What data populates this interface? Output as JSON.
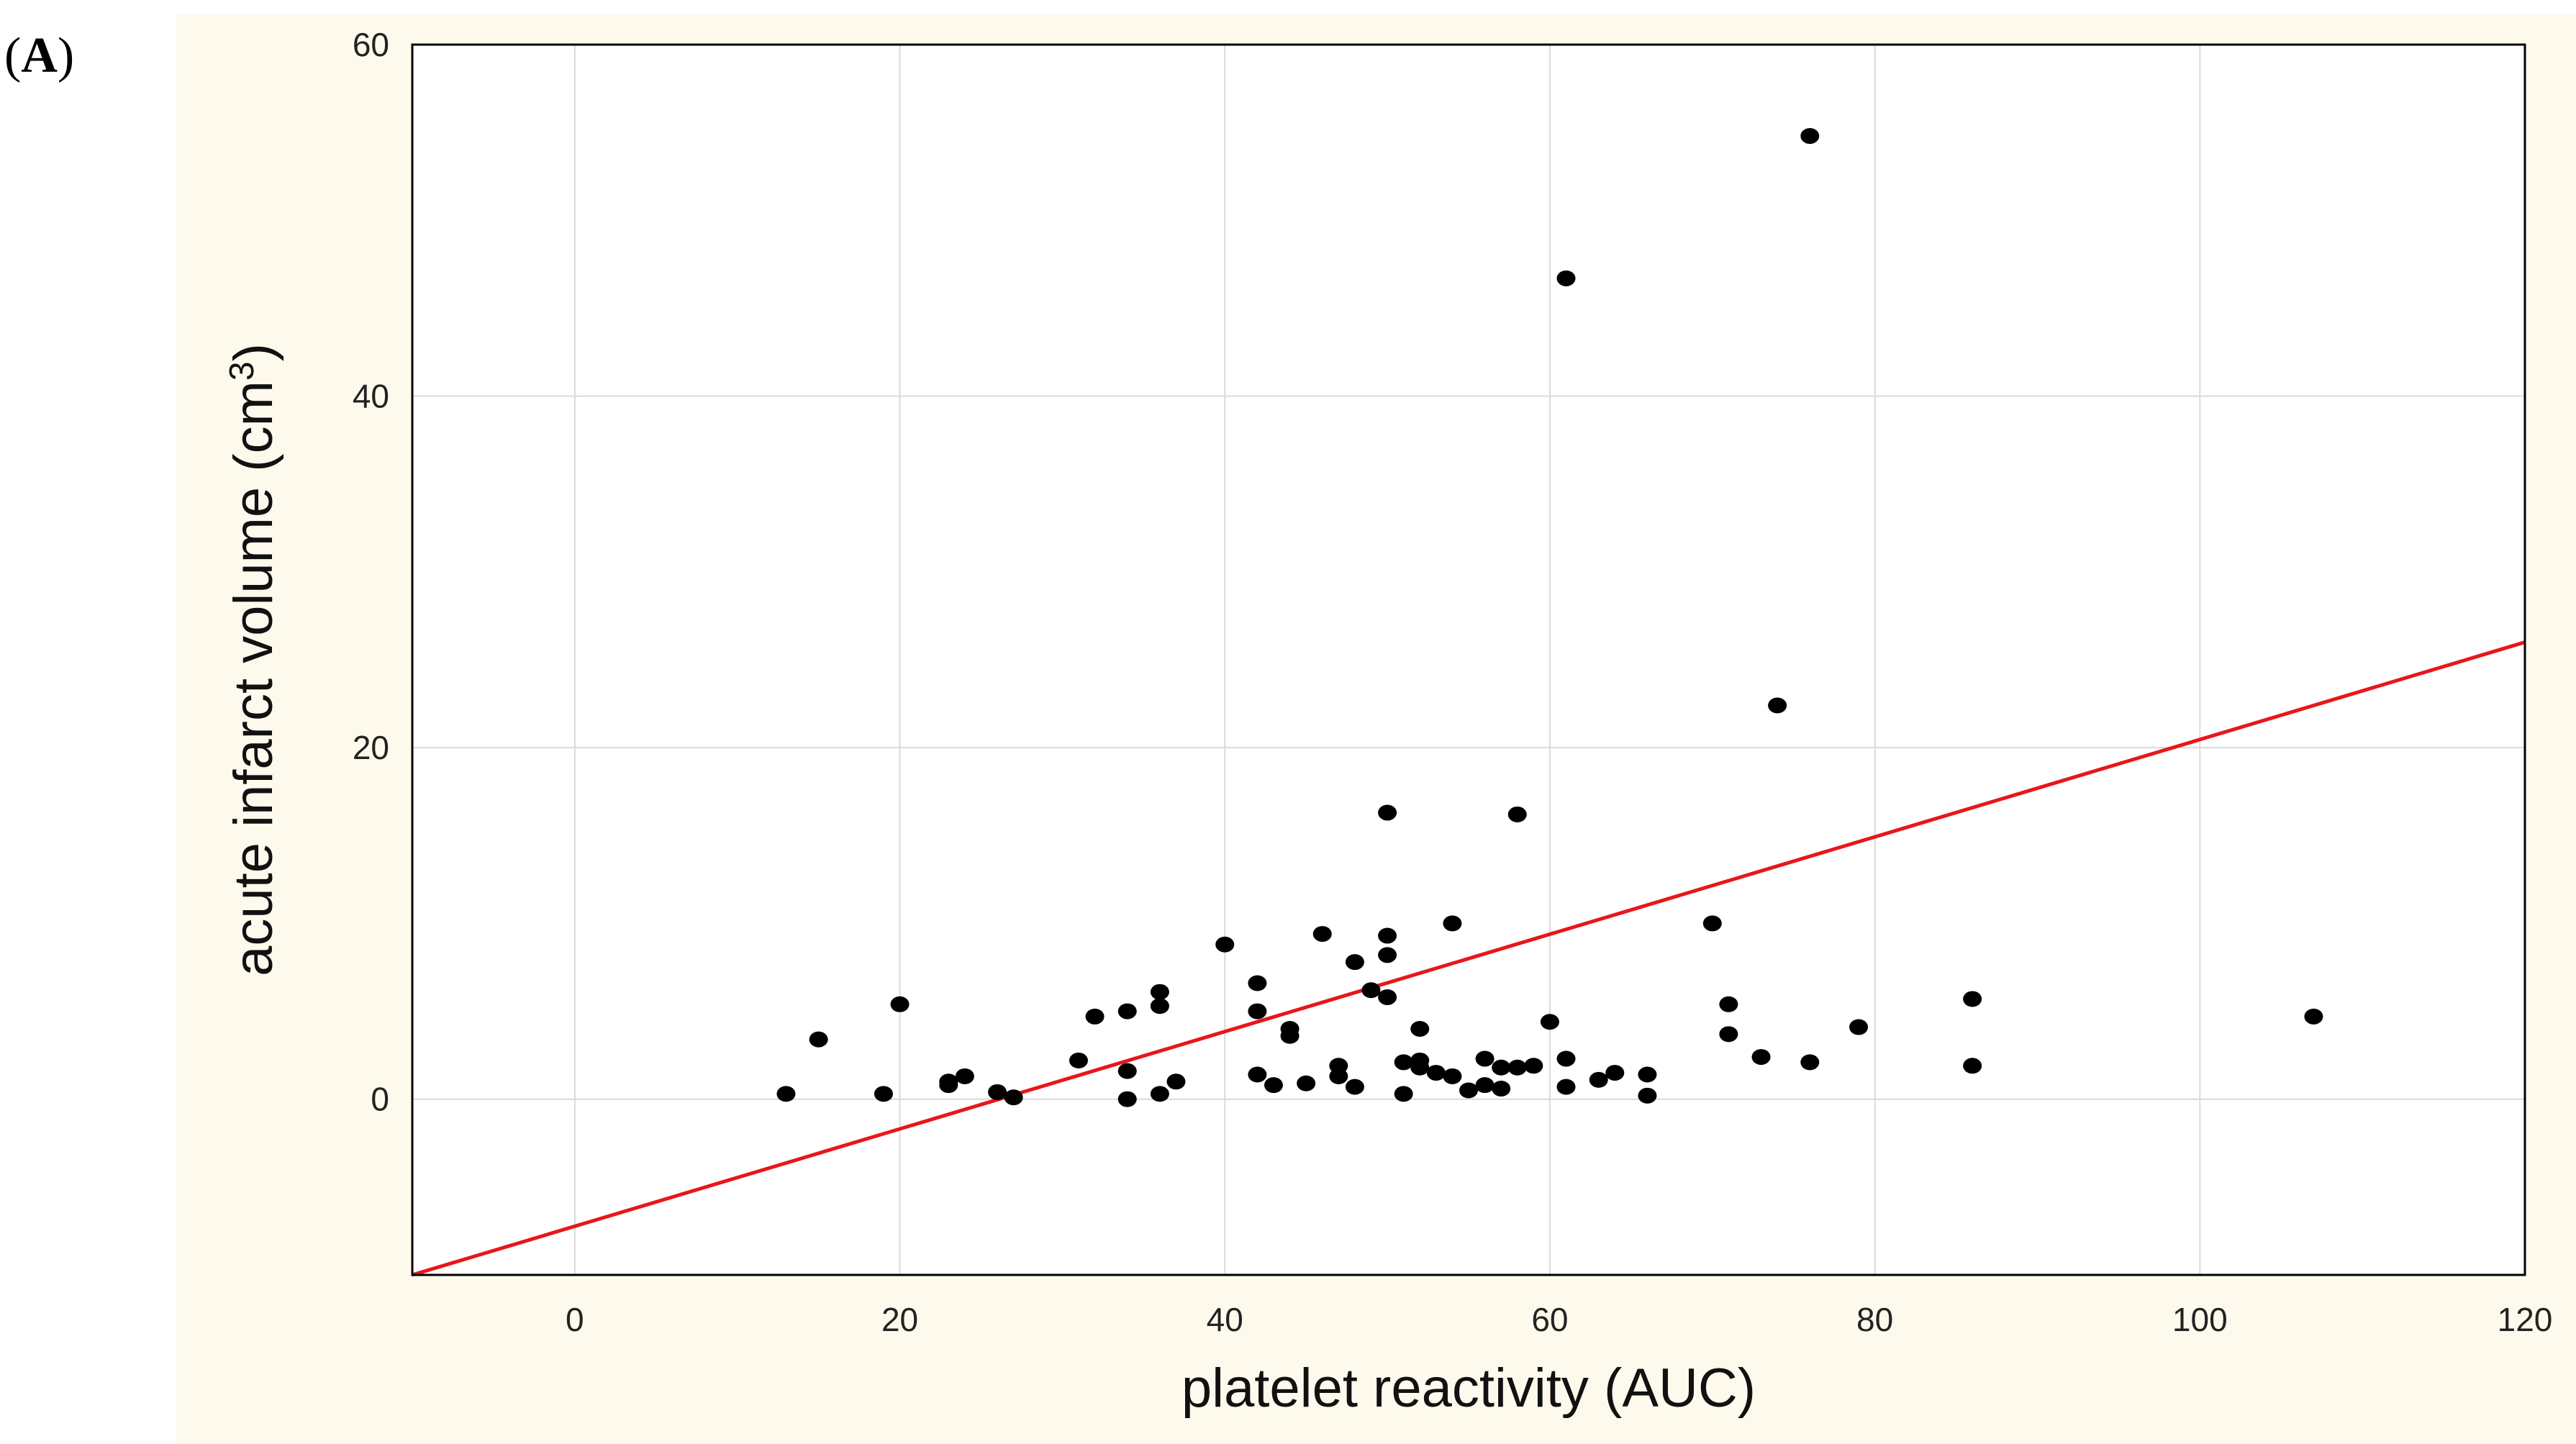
{
  "panel_label": {
    "open": "(",
    "letter": "A",
    "close": ")"
  },
  "colors": {
    "panel_background": "#fdf9ec",
    "plot_background": "#ffffff",
    "grid": "#d9d9d9",
    "points": "#000000",
    "fit_line": "#e8161b"
  },
  "chart_data": {
    "type": "scatter",
    "title": "",
    "xlabel": "platelet reactivity (AUC)",
    "ylabel_main": "acute infarct volume (cm",
    "ylabel_sup": "3",
    "ylabel_close": ")",
    "xlim": [
      -10,
      120
    ],
    "ylim": [
      -10,
      60
    ],
    "xticks": [
      0,
      20,
      40,
      60,
      80,
      100,
      120
    ],
    "yticks": [
      0,
      20,
      40,
      60
    ],
    "grid": true,
    "fit_line": {
      "x": [
        -10,
        120
      ],
      "y": [
        -10,
        26
      ]
    },
    "points": [
      [
        13,
        0.3
      ],
      [
        15,
        3.4
      ],
      [
        19,
        0.3
      ],
      [
        20,
        5.4
      ],
      [
        23,
        0.8
      ],
      [
        23,
        1.0
      ],
      [
        24,
        1.3
      ],
      [
        26,
        0.4
      ],
      [
        27,
        0.1
      ],
      [
        31,
        2.2
      ],
      [
        32,
        4.7
      ],
      [
        34,
        5.0
      ],
      [
        34,
        1.6
      ],
      [
        34,
        0.0
      ],
      [
        36,
        6.1
      ],
      [
        36,
        5.3
      ],
      [
        36,
        0.3
      ],
      [
        37,
        1.0
      ],
      [
        40,
        8.8
      ],
      [
        42,
        6.6
      ],
      [
        42,
        5.0
      ],
      [
        42,
        1.4
      ],
      [
        43,
        0.8
      ],
      [
        44,
        4.0
      ],
      [
        44,
        3.6
      ],
      [
        45,
        0.9
      ],
      [
        46,
        9.4
      ],
      [
        47,
        1.9
      ],
      [
        47,
        1.3
      ],
      [
        48,
        7.8
      ],
      [
        48,
        0.7
      ],
      [
        49,
        6.2
      ],
      [
        50,
        16.3
      ],
      [
        50,
        9.3
      ],
      [
        50,
        8.2
      ],
      [
        50,
        5.8
      ],
      [
        51,
        2.1
      ],
      [
        51,
        0.3
      ],
      [
        52,
        4.0
      ],
      [
        52,
        2.2
      ],
      [
        52,
        1.8
      ],
      [
        53,
        1.5
      ],
      [
        54,
        10.0
      ],
      [
        54,
        1.3
      ],
      [
        55,
        0.5
      ],
      [
        56,
        2.3
      ],
      [
        56,
        0.8
      ],
      [
        57,
        1.8
      ],
      [
        57,
        0.6
      ],
      [
        58,
        16.2
      ],
      [
        58,
        1.8
      ],
      [
        59,
        1.9
      ],
      [
        60,
        4.4
      ],
      [
        61,
        46.7
      ],
      [
        61,
        2.3
      ],
      [
        61,
        0.7
      ],
      [
        63,
        1.1
      ],
      [
        64,
        1.5
      ],
      [
        66,
        1.4
      ],
      [
        66,
        0.2
      ],
      [
        70,
        10.0
      ],
      [
        71,
        5.4
      ],
      [
        71,
        3.7
      ],
      [
        73,
        2.4
      ],
      [
        74,
        22.4
      ],
      [
        76,
        54.8
      ],
      [
        76,
        2.1
      ],
      [
        79,
        4.1
      ],
      [
        86,
        5.7
      ],
      [
        86,
        1.9
      ],
      [
        107,
        4.7
      ]
    ]
  }
}
